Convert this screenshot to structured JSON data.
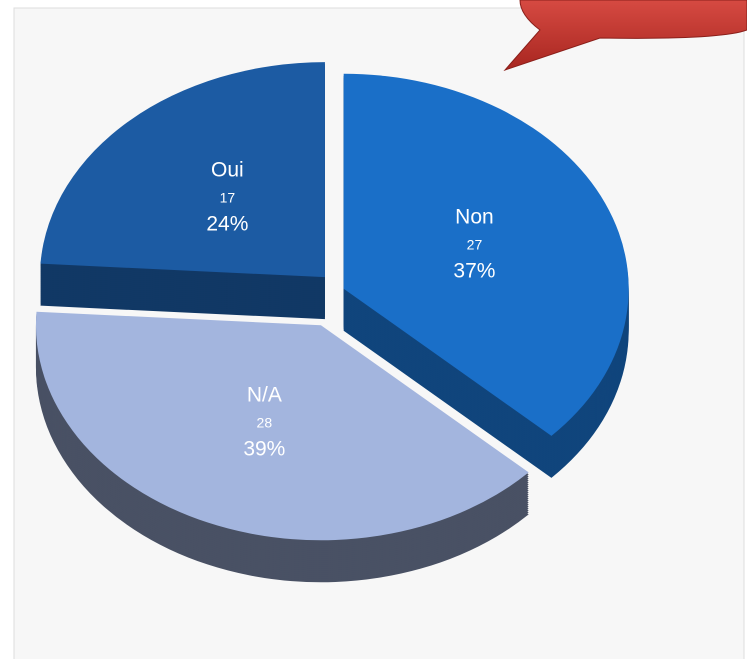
{
  "chart_data": {
    "type": "pie",
    "categories": [
      "Oui",
      "Non",
      "N/A"
    ],
    "counts": [
      17,
      27,
      28
    ],
    "values": [
      24,
      37,
      39
    ],
    "value_labels": [
      "24%",
      "37%",
      "39%"
    ],
    "colors": [
      "#1c5ba3",
      "#1a6fc8",
      "#a3b5de"
    ],
    "order": [
      "N/A",
      "Non",
      "Oui"
    ]
  }
}
